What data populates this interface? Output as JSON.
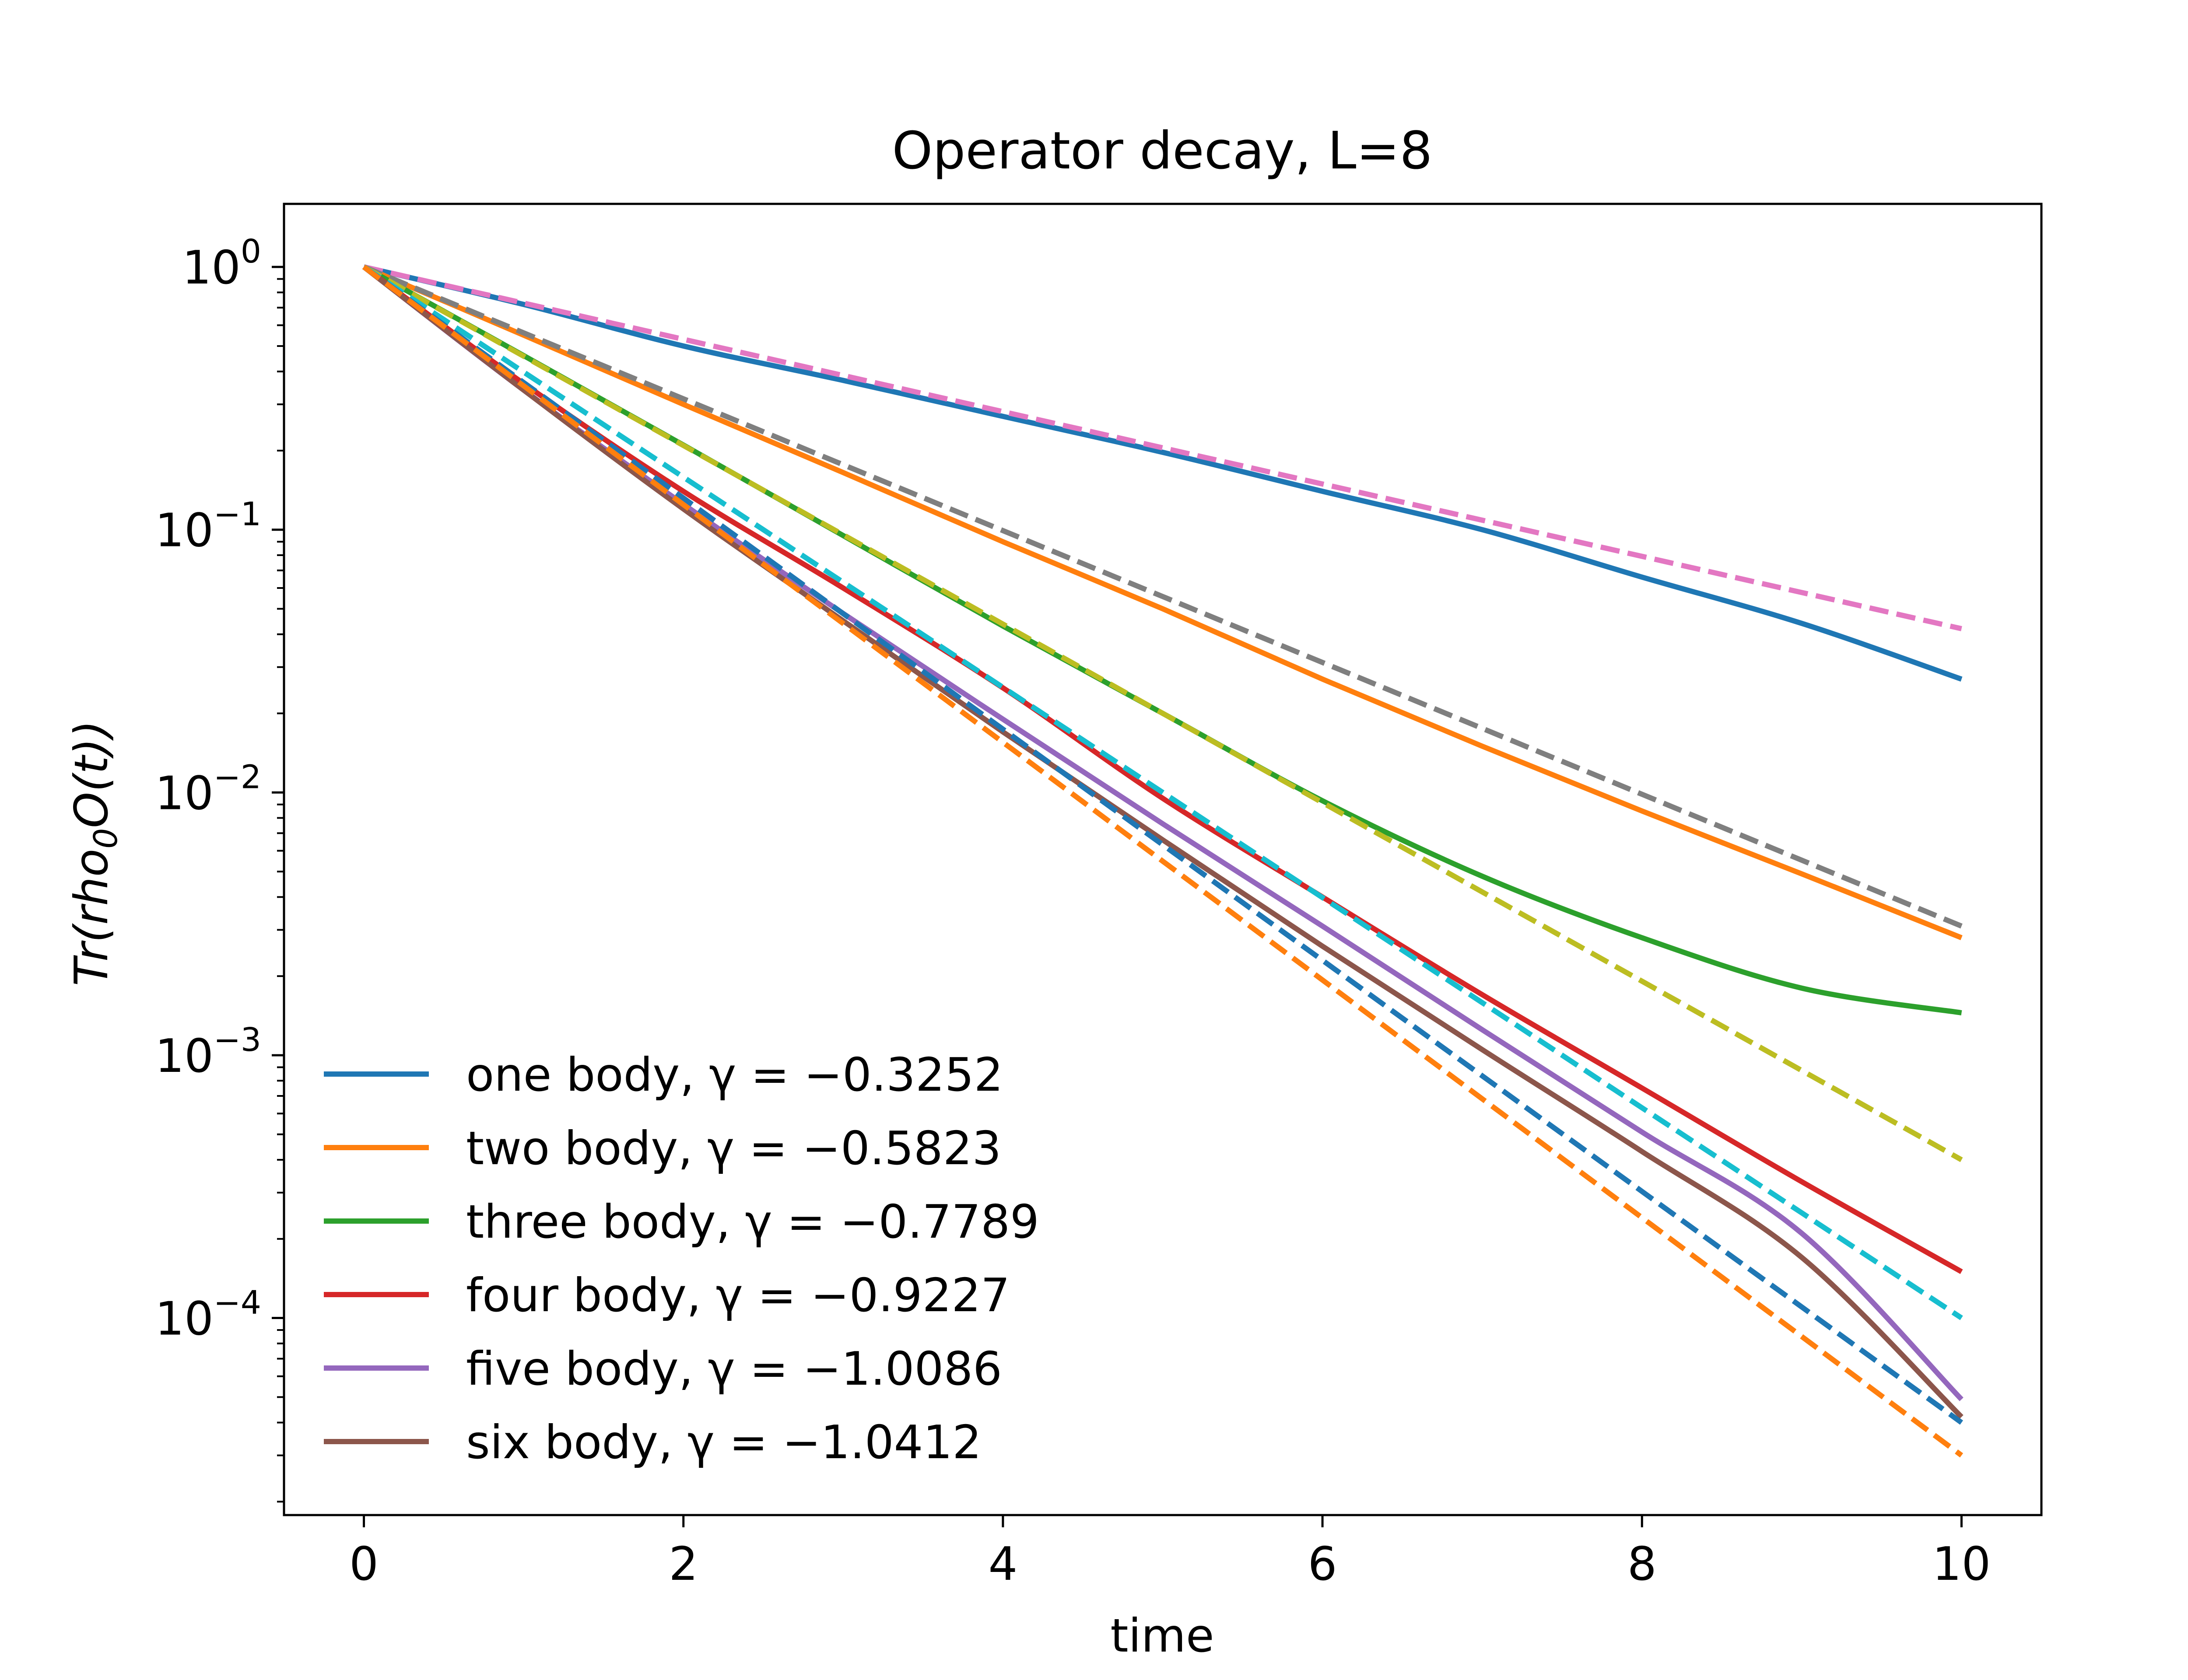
{
  "chart_data": {
    "type": "line",
    "title": "Operator decay, L=8",
    "xlabel": "time",
    "ylabel": "Tr(rho",
    "ylabel_sub": "0",
    "ylabel_tail": "O(t))",
    "xlim": [
      -0.5,
      10.5
    ],
    "ylim_log10": [
      -4.75,
      0.24
    ],
    "y_scale": "log",
    "x_ticks": [
      0,
      2,
      4,
      6,
      8,
      10
    ],
    "x_tick_labels": [
      "0",
      "2",
      "4",
      "6",
      "8",
      "10"
    ],
    "y_ticks": [
      0,
      -1,
      -2,
      -3,
      -4
    ],
    "y_tick_base": "10",
    "y_tick_exponents": [
      "0",
      "−1",
      "−2",
      "−3",
      "−4"
    ],
    "grid": false,
    "legend_position": "lower-left",
    "series": [
      {
        "name": "one body, γ = −0.3252",
        "color": "#1f77b4",
        "style": "solid",
        "x": [
          0,
          1,
          2,
          3,
          4,
          5,
          6,
          7,
          8,
          9,
          10
        ],
        "y": [
          1.0,
          0.72,
          0.5,
          0.37,
          0.27,
          0.197,
          0.14,
          0.1,
          0.066,
          0.044,
          0.027
        ]
      },
      {
        "name": "two body, γ = −0.5823",
        "color": "#ff7f0e",
        "style": "solid",
        "x": [
          0,
          1,
          2,
          3,
          4,
          5,
          6,
          7,
          8,
          9,
          10
        ],
        "y": [
          1.0,
          0.55,
          0.3,
          0.165,
          0.09,
          0.05,
          0.027,
          0.015,
          0.0085,
          0.0049,
          0.0028
        ]
      },
      {
        "name": "three body, γ = −0.7789",
        "color": "#2ca02c",
        "style": "solid",
        "x": [
          0,
          1,
          2,
          3,
          4,
          5,
          6,
          7,
          8,
          9,
          10
        ],
        "y": [
          1.0,
          0.46,
          0.21,
          0.095,
          0.043,
          0.02,
          0.0093,
          0.0048,
          0.0028,
          0.0018,
          0.00145
        ]
      },
      {
        "name": "four body, γ = −0.9227",
        "color": "#d62728",
        "style": "solid",
        "x": [
          0,
          1,
          2,
          3,
          4,
          5,
          6,
          7,
          8,
          9,
          10
        ],
        "y": [
          1.0,
          0.36,
          0.14,
          0.06,
          0.025,
          0.0095,
          0.004,
          0.0017,
          0.00075,
          0.00033,
          0.00015
        ]
      },
      {
        "name": "five body, γ = −1.0086",
        "color": "#9467bd",
        "style": "solid",
        "x": [
          0,
          1,
          2,
          3,
          4,
          5,
          6,
          7,
          8,
          9,
          10
        ],
        "y": [
          1.0,
          0.34,
          0.125,
          0.048,
          0.019,
          0.0076,
          0.0031,
          0.00125,
          0.00051,
          0.00021,
          4.9e-05
        ]
      },
      {
        "name": "six body, γ = −1.0412",
        "color": "#8c564b",
        "style": "solid",
        "x": [
          0,
          1,
          2,
          3,
          4,
          5,
          6,
          7,
          8,
          9,
          10
        ],
        "y": [
          1.0,
          0.34,
          0.12,
          0.045,
          0.017,
          0.0066,
          0.0026,
          0.00105,
          0.00043,
          0.00017,
          4.2e-05
        ]
      },
      {
        "color": "#e377c2",
        "style": "dashed",
        "x": [
          0,
          10
        ],
        "y": [
          1.0,
          0.042
        ]
      },
      {
        "color": "#7f7f7f",
        "style": "dashed",
        "x": [
          0,
          10
        ],
        "y": [
          1.0,
          0.0031
        ]
      },
      {
        "color": "#bcbd22",
        "style": "dashed",
        "x": [
          0,
          10
        ],
        "y": [
          1.0,
          0.0004
        ]
      },
      {
        "color": "#17becf",
        "style": "dashed",
        "x": [
          0,
          10
        ],
        "y": [
          1.0,
          0.0001
        ]
      },
      {
        "color": "#1f77b4",
        "style": "dashed",
        "x": [
          0,
          10
        ],
        "y": [
          1.0,
          4e-05
        ]
      },
      {
        "color": "#ff7f0e",
        "style": "dashed",
        "x": [
          0,
          10
        ],
        "y": [
          1.0,
          3e-05
        ]
      }
    ]
  }
}
